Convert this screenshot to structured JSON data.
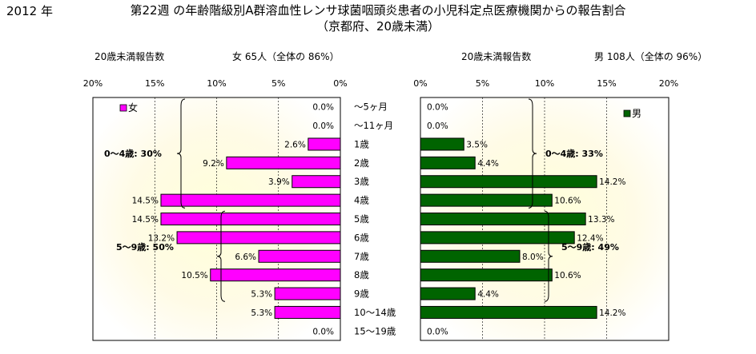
{
  "header": {
    "year": "2012 年",
    "title_line1": "第22週 の年齢階級別A群溶血性レンサ球菌咽頭炎患者の小児科定点医療機関からの報告割合",
    "title_line2": "（京都府、20歳未満）"
  },
  "left_panel": {
    "subtitle_label": "20歳未満報告数",
    "subtitle_count": "女 65人（全体の 86%）",
    "legend": "女",
    "color": "#ff00ff"
  },
  "right_panel": {
    "subtitle_label": "20歳未満報告数",
    "subtitle_count": "男 108人（全体の 96%）",
    "legend": "男",
    "color": "#006400"
  },
  "annotations": {
    "left_0_4": "0～4歳: 30%",
    "left_5_9": "5～9歳: 50%",
    "right_0_4": "0～4歳: 33%",
    "right_5_9": "5～9歳: 49%"
  },
  "chart_data": [
    {
      "type": "bar",
      "orientation": "horizontal",
      "direction": "right-to-left",
      "categories": [
        "～5ヶ月",
        "～11ヶ月",
        "1歳",
        "2歳",
        "3歳",
        "4歳",
        "5歳",
        "6歳",
        "7歳",
        "8歳",
        "9歳",
        "10～14歳",
        "15～19歳"
      ],
      "series": [
        {
          "name": "女",
          "values": [
            0.0,
            0.0,
            2.6,
            9.2,
            3.9,
            14.5,
            14.5,
            13.2,
            6.6,
            10.5,
            5.3,
            5.3,
            0.0
          ],
          "labels": [
            "0.0%",
            "0.0%",
            "2.6%",
            "9.2%",
            "3.9%",
            "14.5%",
            "14.5%",
            "13.2%",
            "6.6%",
            "10.5%",
            "5.3%",
            "5.3%",
            "0.0%"
          ]
        }
      ],
      "xlim": [
        0,
        20
      ],
      "xticks": [
        "0%",
        "5%",
        "10%",
        "15%",
        "20%"
      ],
      "grid": true,
      "legend_position": "top-left"
    },
    {
      "type": "bar",
      "orientation": "horizontal",
      "direction": "left-to-right",
      "categories": [
        "～5ヶ月",
        "～11ヶ月",
        "1歳",
        "2歳",
        "3歳",
        "4歳",
        "5歳",
        "6歳",
        "7歳",
        "8歳",
        "9歳",
        "10～14歳",
        "15～19歳"
      ],
      "series": [
        {
          "name": "男",
          "values": [
            0.0,
            0.0,
            3.5,
            4.4,
            14.2,
            10.6,
            13.3,
            12.4,
            8.0,
            10.6,
            4.4,
            14.2,
            0.0
          ],
          "labels": [
            "0.0%",
            "0.0%",
            "3.5%",
            "4.4%",
            "14.2%",
            "10.6%",
            "13.3%",
            "12.4%",
            "8.0%",
            "10.6%",
            "4.4%",
            "14.2%",
            "0.0%"
          ]
        }
      ],
      "xlim": [
        0,
        20
      ],
      "xticks": [
        "0%",
        "5%",
        "10%",
        "15%",
        "20%"
      ],
      "grid": true,
      "legend_position": "top-right"
    }
  ]
}
